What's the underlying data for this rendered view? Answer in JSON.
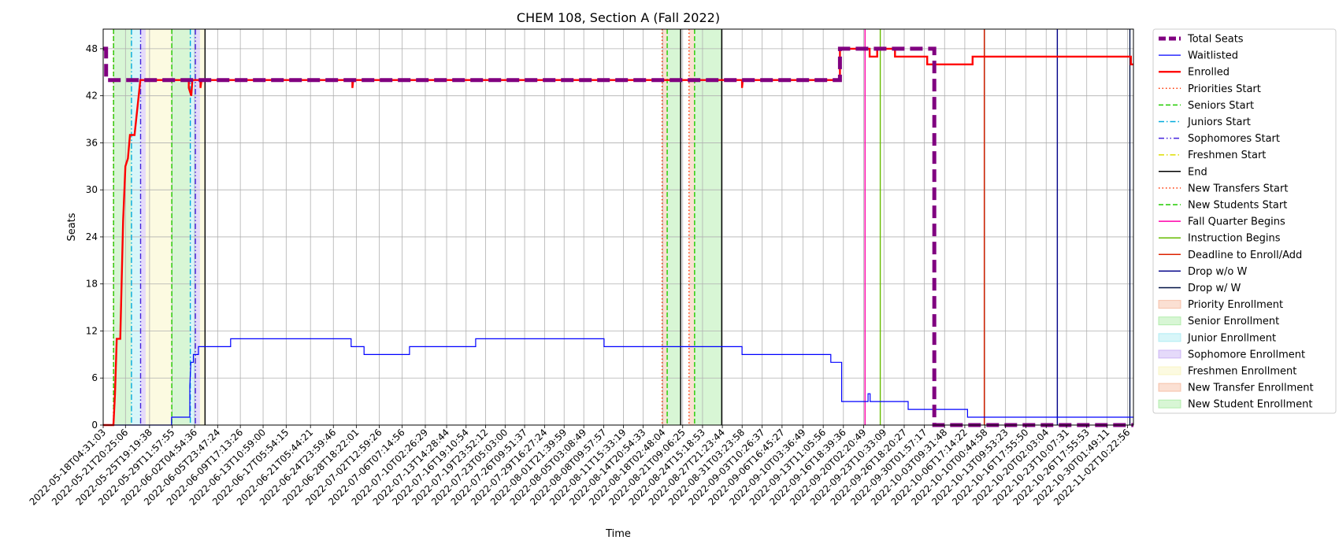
{
  "chart_data": {
    "type": "line",
    "title": "CHEM 108, Section A (Fall 2022)",
    "xlabel": "Time",
    "ylabel": "Seats",
    "ylim": [
      0,
      50.5
    ],
    "xlim": [
      "2022-05-18T04:31:03",
      "2022-11-03T10:00:00"
    ],
    "grid": true,
    "legend_position": "outside-right",
    "y_ticks": [
      0,
      6,
      12,
      18,
      24,
      30,
      36,
      42,
      48
    ],
    "x_ticks": [
      "2022-05-18T04:31:03",
      "2022-05-21T20:25:06",
      "2022-05-25T19:19:38",
      "2022-05-29T11:57:55",
      "2022-06-02T04:54:36",
      "2022-06-05T23:47:24",
      "2022-06-09T17:13:26",
      "2022-06-13T10:59:00",
      "2022-06-17T05:54:15",
      "2022-06-21T05:44:21",
      "2022-06-24T23:59:46",
      "2022-06-28T18:22:01",
      "2022-07-02T12:59:26",
      "2022-07-06T07:14:56",
      "2022-07-10T02:26:29",
      "2022-07-13T14:28:44",
      "2022-07-16T19:10:54",
      "2022-07-19T23:52:12",
      "2022-07-23T05:03:00",
      "2022-07-26T09:51:37",
      "2022-07-29T16:27:24",
      "2022-08-01T21:39:59",
      "2022-08-05T03:08:49",
      "2022-08-08T09:57:57",
      "2022-08-11T15:33:19",
      "2022-08-14T20:54:33",
      "2022-08-18T02:48:04",
      "2022-08-21T09:06:25",
      "2022-08-24T15:18:53",
      "2022-08-27T21:23:44",
      "2022-08-31T03:23:58",
      "2022-09-03T10:26:37",
      "2022-09-06T16:45:27",
      "2022-09-10T03:36:49",
      "2022-09-13T11:05:56",
      "2022-09-16T18:39:36",
      "2022-09-20T02:20:49",
      "2022-09-23T10:33:09",
      "2022-09-26T18:20:27",
      "2022-09-30T01:57:17",
      "2022-10-03T09:31:48",
      "2022-10-06T17:14:22",
      "2022-10-10T00:44:58",
      "2022-10-13T09:53:23",
      "2022-10-16T17:55:50",
      "2022-10-20T02:03:04",
      "2022-10-23T10:07:31",
      "2022-10-26T17:55:53",
      "2022-10-30T01:49:11",
      "2022-11-02T10:22:56"
    ],
    "series": [
      {
        "name": "Total Seats",
        "color": "#800080",
        "style": "dashed-thick",
        "points": [
          [
            "2022-05-18T04:31:03",
            48
          ],
          [
            "2022-05-18T16:00:00",
            48
          ],
          [
            "2022-05-18T16:00:00",
            44
          ],
          [
            "2022-09-16T05:00:00",
            44
          ],
          [
            "2022-09-16T05:00:00",
            48
          ],
          [
            "2022-10-01T17:00:00",
            48
          ],
          [
            "2022-10-01T17:00:00",
            0
          ],
          [
            "2022-11-03T10:00:00",
            0
          ]
        ]
      },
      {
        "name": "Waitlisted",
        "color": "#0000ff",
        "style": "solid-thin",
        "points": [
          [
            "2022-05-18T04:31:03",
            0
          ],
          [
            "2022-05-29T10:00:00",
            0
          ],
          [
            "2022-05-29T10:00:00",
            1
          ],
          [
            "2022-06-01T10:00:00",
            1
          ],
          [
            "2022-06-01T10:00:00",
            5
          ],
          [
            "2022-06-01T14:00:00",
            8
          ],
          [
            "2022-06-02T00:00:00",
            8
          ],
          [
            "2022-06-02T00:00:00",
            9
          ],
          [
            "2022-06-02T20:00:00",
            9
          ],
          [
            "2022-06-02T20:00:00",
            10
          ],
          [
            "2022-06-08T03:00:00",
            10
          ],
          [
            "2022-06-08T03:00:00",
            11
          ],
          [
            "2022-06-27T22:00:00",
            11
          ],
          [
            "2022-06-27T22:00:00",
            10
          ],
          [
            "2022-06-30T01:00:00",
            10
          ],
          [
            "2022-06-30T01:00:00",
            9
          ],
          [
            "2022-07-07T12:00:00",
            9
          ],
          [
            "2022-07-07T12:00:00",
            10
          ],
          [
            "2022-07-18T09:00:00",
            10
          ],
          [
            "2022-07-18T09:00:00",
            11
          ],
          [
            "2022-08-08T11:00:00",
            11
          ],
          [
            "2022-08-08T11:00:00",
            10
          ],
          [
            "2022-08-31T03:00:00",
            10
          ],
          [
            "2022-08-31T03:00:00",
            9
          ],
          [
            "2022-09-14T17:00:00",
            9
          ],
          [
            "2022-09-14T17:00:00",
            8
          ],
          [
            "2022-09-16T12:00:00",
            8
          ],
          [
            "2022-09-16T12:00:00",
            3
          ],
          [
            "2022-09-20T20:00:00",
            3
          ],
          [
            "2022-09-20T20:00:00",
            4
          ],
          [
            "2022-09-21T04:00:00",
            4
          ],
          [
            "2022-09-21T04:00:00",
            3
          ],
          [
            "2022-09-27T10:00:00",
            3
          ],
          [
            "2022-09-27T10:00:00",
            2
          ],
          [
            "2022-10-07T04:00:00",
            2
          ],
          [
            "2022-10-07T04:00:00",
            1
          ],
          [
            "2022-11-03T10:00:00",
            1
          ]
        ]
      },
      {
        "name": "Enrolled",
        "color": "#ff0000",
        "style": "solid-thick",
        "points": [
          [
            "2022-05-18T04:31:03",
            0
          ],
          [
            "2022-05-19T21:00:00",
            0
          ],
          [
            "2022-05-20T03:00:00",
            4
          ],
          [
            "2022-05-20T10:00:00",
            11
          ],
          [
            "2022-05-21T00:00:00",
            11
          ],
          [
            "2022-05-21T11:00:00",
            26
          ],
          [
            "2022-05-21T20:00:00",
            33
          ],
          [
            "2022-05-22T06:00:00",
            34
          ],
          [
            "2022-05-22T14:00:00",
            37
          ],
          [
            "2022-05-23T08:00:00",
            37
          ],
          [
            "2022-05-24T07:00:00",
            44
          ],
          [
            "2022-06-01T06:00:00",
            44
          ],
          [
            "2022-06-01T06:00:00",
            43
          ],
          [
            "2022-06-01T16:00:00",
            42
          ],
          [
            "2022-06-01T20:00:00",
            44
          ],
          [
            "2022-06-03T04:00:00",
            44
          ],
          [
            "2022-06-03T04:00:00",
            43
          ],
          [
            "2022-06-03T08:00:00",
            44
          ],
          [
            "2022-06-28T03:00:00",
            44
          ],
          [
            "2022-06-28T03:00:00",
            43
          ],
          [
            "2022-06-28T06:00:00",
            44
          ],
          [
            "2022-08-31T03:00:00",
            44
          ],
          [
            "2022-08-31T03:00:00",
            43
          ],
          [
            "2022-08-31T06:00:00",
            44
          ],
          [
            "2022-09-16T05:00:00",
            44
          ],
          [
            "2022-09-16T05:00:00",
            48
          ],
          [
            "2022-09-21T02:00:00",
            48
          ],
          [
            "2022-09-21T02:00:00",
            47
          ],
          [
            "2022-09-22T08:00:00",
            47
          ],
          [
            "2022-09-22T08:00:00",
            48
          ],
          [
            "2022-09-25T06:00:00",
            48
          ],
          [
            "2022-09-25T06:00:00",
            47
          ],
          [
            "2022-09-30T13:00:00",
            47
          ],
          [
            "2022-09-30T13:00:00",
            46
          ],
          [
            "2022-10-08T00:00:00",
            46
          ],
          [
            "2022-10-08T00:00:00",
            47
          ],
          [
            "2022-11-03T00:00:00",
            47
          ],
          [
            "2022-11-03T00:00:00",
            46
          ],
          [
            "2022-11-03T10:00:00",
            46
          ]
        ]
      }
    ],
    "markers": [
      {
        "name": "Priorities Start",
        "color": "#ff3300",
        "style": "dotted",
        "dates": [
          "2022-05-19T21:00:00",
          "2022-08-18T00:00:00",
          "2022-08-22T10:00:00"
        ]
      },
      {
        "name": "Seniors Start",
        "color": "#22cc00",
        "style": "dashed",
        "dates": [
          "2022-05-19T21:30:00",
          "2022-05-29T11:00:00",
          "2022-08-18T20:00:00",
          "2022-08-23T08:00:00"
        ]
      },
      {
        "name": "Juniors Start",
        "color": "#00aadd",
        "style": "dashdot",
        "dates": [
          "2022-05-22T20:00:00",
          "2022-06-01T12:00:00"
        ]
      },
      {
        "name": "Sophomores Start",
        "color": "#4422dd",
        "style": "dashdotdot",
        "dates": [
          "2022-05-24T08:00:00",
          "2022-06-02T08:00:00"
        ]
      },
      {
        "name": "Freshmen Start",
        "color": "#dddd00",
        "style": "dashdot",
        "dates": []
      },
      {
        "name": "End",
        "color": "#000000",
        "style": "solid",
        "dates": [
          "2022-06-03T22:00:00",
          "2022-08-21T01:00:00",
          "2022-08-27T19:00:00"
        ]
      },
      {
        "name": "New Transfers Start",
        "color": "#ff3300",
        "style": "dotted",
        "dates": []
      },
      {
        "name": "New Students Start",
        "color": "#22cc00",
        "style": "dashed",
        "dates": []
      },
      {
        "name": "Fall Quarter Begins",
        "color": "#ff00aa",
        "style": "solid",
        "dates": [
          "2022-09-20T08:00:00"
        ]
      },
      {
        "name": "Instruction Begins",
        "color": "#66bb00",
        "style": "solid",
        "dates": [
          "2022-09-22T20:00:00"
        ]
      },
      {
        "name": "Deadline to Enroll/Add",
        "color": "#dd2200",
        "style": "solid",
        "dates": [
          "2022-10-09T22:00:00"
        ]
      },
      {
        "name": "Drop w/o W",
        "color": "#000088",
        "style": "solid",
        "dates": [
          "2022-10-21T22:00:00"
        ]
      },
      {
        "name": "Drop w/ W",
        "color": "#001144",
        "style": "solid",
        "dates": [
          "2022-11-02T20:00:00"
        ]
      }
    ],
    "regions": [
      {
        "name": "Priority Enrollment",
        "color": "#f4a582",
        "spans": [
          [
            "2022-05-19T21:00:00",
            "2022-05-19T21:30:00"
          ],
          [
            "2022-08-18T00:00:00",
            "2022-08-18T20:00:00"
          ],
          [
            "2022-08-22T10:00:00",
            "2022-08-23T08:00:00"
          ]
        ]
      },
      {
        "name": "Senior Enrollment",
        "color": "#8ee586",
        "spans": [
          [
            "2022-05-19T21:30:00",
            "2022-05-22T20:00:00"
          ],
          [
            "2022-05-29T11:00:00",
            "2022-06-01T12:00:00"
          ],
          [
            "2022-08-18T20:00:00",
            "2022-08-21T01:00:00"
          ],
          [
            "2022-08-23T08:00:00",
            "2022-08-27T19:00:00"
          ]
        ]
      },
      {
        "name": "Junior Enrollment",
        "color": "#8ee5ee",
        "spans": [
          [
            "2022-05-22T20:00:00",
            "2022-05-24T08:00:00"
          ],
          [
            "2022-06-01T12:00:00",
            "2022-06-02T08:00:00"
          ]
        ]
      },
      {
        "name": "Sophomore Enrollment",
        "color": "#b594f0",
        "spans": [
          [
            "2022-05-24T08:00:00",
            "2022-05-25T04:00:00"
          ],
          [
            "2022-06-02T08:00:00",
            "2022-06-03T02:00:00"
          ]
        ]
      },
      {
        "name": "Freshmen Enrollment",
        "color": "#f5f0a8",
        "spans": [
          [
            "2022-05-25T04:00:00",
            "2022-05-29T11:00:00"
          ],
          [
            "2022-06-03T02:00:00",
            "2022-06-03T22:00:00"
          ]
        ]
      },
      {
        "name": "New Transfer Enrollment",
        "color": "#f4a582",
        "spans": []
      },
      {
        "name": "New Student Enrollment",
        "color": "#8ee586",
        "spans": []
      }
    ]
  }
}
